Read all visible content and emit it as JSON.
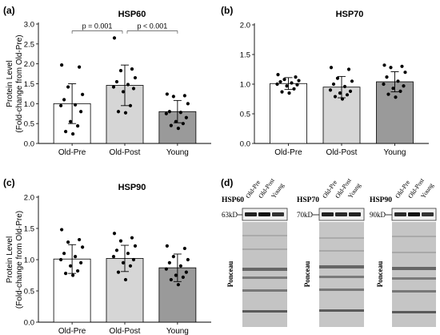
{
  "figure": {
    "panel_labels": [
      "(a)",
      "(b)",
      "(c)",
      "(d)"
    ]
  },
  "chart_data": [
    {
      "type": "bar",
      "panel": "(a)",
      "title": "HSP60",
      "ylabel": "Protein Level\n(Fold-change from Old-Pre)",
      "categories": [
        "Old-Pre",
        "Old-Post",
        "Young"
      ],
      "values": [
        1.0,
        1.46,
        0.8
      ],
      "error_sd": [
        0.5,
        0.51,
        0.28
      ],
      "bar_colors": [
        "#ffffff",
        "#d6d6d6",
        "#9a9a9a"
      ],
      "ylim": [
        0,
        3.0
      ],
      "yticks": [
        "0.0",
        "0.5",
        "1.0",
        "1.5",
        "2.0",
        "2.5",
        "3.0"
      ],
      "annotations": [
        {
          "text": "p = 0.001",
          "from": 0,
          "to": 1
        },
        {
          "text": "p < 0.001",
          "from": 1,
          "to": 2
        }
      ],
      "points": [
        [
          1.97,
          1.92,
          1.42,
          1.23,
          1.1,
          0.97,
          0.95,
          0.8,
          0.55,
          0.44,
          0.3,
          0.24
        ],
        [
          2.65,
          1.87,
          1.83,
          1.65,
          1.55,
          1.48,
          1.42,
          1.38,
          1.3,
          0.95,
          0.8,
          0.77
        ],
        [
          1.24,
          1.2,
          1.18,
          1.0,
          0.8,
          0.78,
          0.75,
          0.65,
          0.55,
          0.5,
          0.45,
          0.38
        ]
      ]
    },
    {
      "type": "bar",
      "panel": "(b)",
      "title": "HSP70",
      "ylabel": "",
      "categories": [
        "Old-Pre",
        "Old-Post",
        "Young"
      ],
      "values": [
        1.01,
        0.95,
        1.04
      ],
      "error_sd": [
        0.1,
        0.18,
        0.17
      ],
      "bar_colors": [
        "#ffffff",
        "#d6d6d6",
        "#9a9a9a"
      ],
      "ylim": [
        0,
        2.0
      ],
      "yticks": [
        "0.0",
        "0.5",
        "1.0",
        "1.5",
        "2.0"
      ],
      "annotations": [],
      "points": [
        [
          1.16,
          1.12,
          1.08,
          1.06,
          1.04,
          1.02,
          1.0,
          0.99,
          0.97,
          0.92,
          0.87,
          0.85
        ],
        [
          1.28,
          1.25,
          1.1,
          1.05,
          1.0,
          0.96,
          0.9,
          0.88,
          0.85,
          0.82,
          0.79,
          0.75
        ],
        [
          1.32,
          1.3,
          1.28,
          1.2,
          1.12,
          1.05,
          1.0,
          0.97,
          0.93,
          0.88,
          0.83,
          0.78
        ]
      ]
    },
    {
      "type": "bar",
      "panel": "(c)",
      "title": "HSP90",
      "ylabel": "Protein Level\n(Fold-change from Old-Pre)",
      "categories": [
        "Old-Pre",
        "Old-Post",
        "Young"
      ],
      "values": [
        1.01,
        1.02,
        0.87
      ],
      "error_sd": [
        0.23,
        0.21,
        0.22
      ],
      "bar_colors": [
        "#ffffff",
        "#d6d6d6",
        "#9a9a9a"
      ],
      "ylim": [
        0,
        2.0
      ],
      "yticks": [
        "0.0",
        "0.5",
        "1.0",
        "1.5",
        "2.0"
      ],
      "annotations": [],
      "points": [
        [
          1.48,
          1.32,
          1.28,
          1.2,
          1.1,
          1.05,
          1.0,
          0.95,
          0.9,
          0.82,
          0.78,
          0.75
        ],
        [
          1.42,
          1.35,
          1.3,
          1.22,
          1.15,
          1.1,
          1.05,
          1.0,
          0.95,
          0.9,
          0.8,
          0.68
        ],
        [
          1.22,
          1.18,
          1.05,
          1.0,
          0.95,
          0.9,
          0.85,
          0.8,
          0.75,
          0.72,
          0.68,
          0.6
        ]
      ]
    }
  ],
  "blots": {
    "panel": "(d)",
    "lanes": [
      "Old-Pre",
      "Old-Post",
      "Young"
    ],
    "stain_label": "Ponceau",
    "items": [
      {
        "protein": "HSP60",
        "kd": "63kD"
      },
      {
        "protein": "HSP70",
        "kd": "70kD"
      },
      {
        "protein": "HSP90",
        "kd": "90kD"
      }
    ]
  }
}
